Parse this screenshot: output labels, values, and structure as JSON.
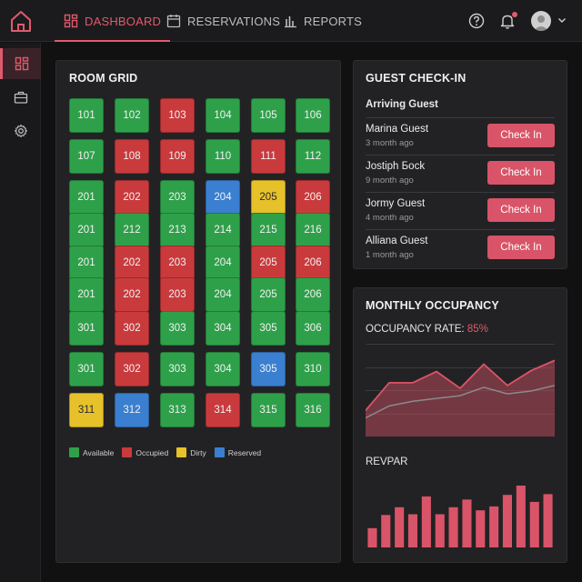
{
  "nav": {
    "items": [
      {
        "label": "DASHBOARD",
        "icon": "dashboard-icon",
        "active": true
      },
      {
        "label": "RESERVATIONS",
        "icon": "calendar-icon",
        "active": false
      },
      {
        "label": "REPORTS",
        "icon": "bar-chart-icon",
        "active": false
      }
    ],
    "icons": [
      "help-icon",
      "bell-icon",
      "avatar",
      "chevron-down-icon"
    ],
    "accent": "#e05a6d"
  },
  "sidebar": {
    "items": [
      {
        "icon": "dashboard-icon",
        "active": true
      },
      {
        "icon": "briefcase-icon",
        "active": false
      },
      {
        "icon": "gear-icon",
        "active": false
      }
    ]
  },
  "room_grid": {
    "title": "ROOM GRID",
    "rows": [
      [
        {
          "n": "101",
          "s": "available"
        },
        {
          "n": "102",
          "s": "available"
        },
        {
          "n": "103",
          "s": "occupied"
        },
        {
          "n": "104",
          "s": "available"
        },
        {
          "n": "105",
          "s": "available"
        },
        {
          "n": "106",
          "s": "available"
        }
      ],
      [
        {
          "n": "107",
          "s": "available"
        },
        {
          "n": "108",
          "s": "occupied"
        },
        {
          "n": "109",
          "s": "occupied"
        },
        {
          "n": "110",
          "s": "available"
        },
        {
          "n": "111",
          "s": "occupied"
        },
        {
          "n": "112",
          "s": "available"
        }
      ],
      [
        {
          "n": "201",
          "s": "available"
        },
        {
          "n": "202",
          "s": "occupied"
        },
        {
          "n": "203",
          "s": "available"
        },
        {
          "n": "204",
          "s": "reserved"
        },
        {
          "n": "205",
          "s": "dirty"
        },
        {
          "n": "206",
          "s": "occupied"
        }
      ],
      [
        {
          "n": "201",
          "s": "available"
        },
        {
          "n": "212",
          "s": "available"
        },
        {
          "n": "213",
          "s": "available"
        },
        {
          "n": "214",
          "s": "available"
        },
        {
          "n": "215",
          "s": "available"
        },
        {
          "n": "216",
          "s": "available"
        }
      ],
      [
        {
          "n": "201",
          "s": "available"
        },
        {
          "n": "202",
          "s": "occupied"
        },
        {
          "n": "203",
          "s": "occupied"
        },
        {
          "n": "204",
          "s": "available"
        },
        {
          "n": "205",
          "s": "occupied"
        },
        {
          "n": "206",
          "s": "occupied"
        }
      ],
      [
        {
          "n": "201",
          "s": "available"
        },
        {
          "n": "202",
          "s": "occupied"
        },
        {
          "n": "203",
          "s": "occupied"
        },
        {
          "n": "204",
          "s": "available"
        },
        {
          "n": "205",
          "s": "available"
        },
        {
          "n": "206",
          "s": "available"
        }
      ],
      [
        {
          "n": "301",
          "s": "available"
        },
        {
          "n": "302",
          "s": "occupied"
        },
        {
          "n": "303",
          "s": "available"
        },
        {
          "n": "304",
          "s": "available"
        },
        {
          "n": "305",
          "s": "available"
        },
        {
          "n": "306",
          "s": "available"
        }
      ],
      [
        {
          "n": "301",
          "s": "available"
        },
        {
          "n": "302",
          "s": "occupied"
        },
        {
          "n": "303",
          "s": "available"
        },
        {
          "n": "304",
          "s": "available"
        },
        {
          "n": "305",
          "s": "reserved"
        },
        {
          "n": "310",
          "s": "available"
        }
      ],
      [
        {
          "n": "311",
          "s": "dirty"
        },
        {
          "n": "312",
          "s": "reserved"
        },
        {
          "n": "313",
          "s": "available"
        },
        {
          "n": "314",
          "s": "occupied"
        },
        {
          "n": "315",
          "s": "available"
        },
        {
          "n": "316",
          "s": "available"
        }
      ]
    ],
    "legend": [
      {
        "label": "Available",
        "color": "#2fa04a"
      },
      {
        "label": "Occupied",
        "color": "#c93a3c"
      },
      {
        "label": "Dirty",
        "color": "#e6c12a"
      },
      {
        "label": "Reserved",
        "color": "#3a7fd0"
      }
    ]
  },
  "guest_checkin": {
    "title": "GUEST CHECK-IN",
    "subtitle": "Arriving Guest",
    "button_label": "Check In",
    "guests": [
      {
        "name": "Marina Guest",
        "time": "3 month ago"
      },
      {
        "name": "Jostiph Бock",
        "time": "9 month ago"
      },
      {
        "name": "Jormy Guest",
        "time": "4 month ago"
      },
      {
        "name": "Alliana Guest",
        "time": "1 month ago"
      }
    ]
  },
  "monthly_occupancy": {
    "title": "MONTHLY OCCUPANCY",
    "rate_label": "OCCUPANCY RATE:",
    "rate_value": "85%",
    "revpar_label": "REVPAR"
  },
  "chart_data": [
    {
      "type": "area",
      "series": [
        {
          "values": [
            28,
            58,
            58,
            70,
            52,
            78,
            55,
            71,
            82
          ]
        },
        {
          "values": [
            20,
            33,
            38,
            41,
            44,
            53,
            46,
            49,
            55
          ]
        }
      ],
      "ylim": [
        0,
        100
      ],
      "grid": true,
      "colors": [
        "#d95468",
        "#8a8a8a"
      ]
    },
    {
      "type": "bar",
      "values": [
        25,
        42,
        52,
        43,
        66,
        43,
        52,
        62,
        48,
        53,
        68,
        80,
        59,
        69
      ],
      "ylim": [
        0,
        100
      ],
      "colors": [
        "#d95468"
      ]
    }
  ]
}
